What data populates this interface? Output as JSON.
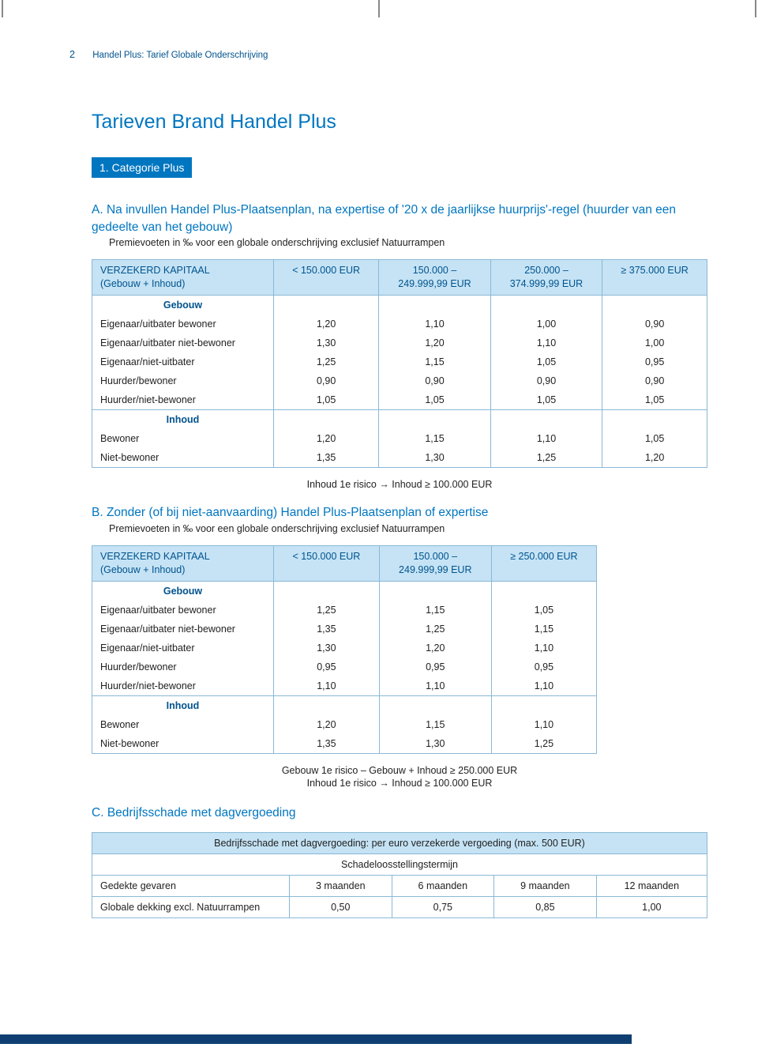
{
  "colors": {
    "accent": "#0076c0",
    "accent_dark": "#00538e",
    "header_bg": "#c5e3f5",
    "border": "#8ab8d6",
    "footer_bar": "#0f3f72",
    "text": "#222222"
  },
  "header": {
    "page_number": "2",
    "running_title": "Handel Plus: Tarief Globale Onderschrijving"
  },
  "title": "Tarieven Brand Handel Plus",
  "category_badge": "1. Categorie Plus",
  "sectionA": {
    "heading_prefix": "A. ",
    "heading": "Na invullen Handel Plus-Plaatsenplan, na expertise of '20 x de jaarlijkse huurprijs'-regel (huurder van een gedeelte van het gebouw)",
    "subtext": "Premievoeten in ‰ voor een globale onderschrijving exclusief Natuurrampen",
    "table": {
      "header_label_line1": "VERZEKERD KAPITAAL",
      "header_label_line2": "(Gebouw + Inhoud)",
      "columns": [
        "< 150.000 EUR",
        "150.000 –\n249.999,99 EUR",
        "250.000 –\n374.999,99 EUR",
        "≥ 375.000 EUR"
      ],
      "group1_label": "Gebouw",
      "group1_rows": [
        {
          "label": "Eigenaar/uitbater bewoner",
          "v": [
            "1,20",
            "1,10",
            "1,00",
            "0,90"
          ]
        },
        {
          "label": "Eigenaar/uitbater niet-bewoner",
          "v": [
            "1,30",
            "1,20",
            "1,10",
            "1,00"
          ]
        },
        {
          "label": "Eigenaar/niet-uitbater",
          "v": [
            "1,25",
            "1,15",
            "1,05",
            "0,95"
          ]
        },
        {
          "label": "Huurder/bewoner",
          "v": [
            "0,90",
            "0,90",
            "0,90",
            "0,90"
          ]
        },
        {
          "label": "Huurder/niet-bewoner",
          "v": [
            "1,05",
            "1,05",
            "1,05",
            "1,05"
          ]
        }
      ],
      "group2_label": "Inhoud",
      "group2_rows": [
        {
          "label": "Bewoner",
          "v": [
            "1,20",
            "1,15",
            "1,10",
            "1,05"
          ]
        },
        {
          "label": "Niet-bewoner",
          "v": [
            "1,35",
            "1,30",
            "1,25",
            "1,20"
          ]
        }
      ]
    },
    "footnote": "Inhoud 1e risico  →  Inhoud ≥ 100.000 EUR"
  },
  "sectionB": {
    "heading_prefix": "B. ",
    "heading": "Zonder (of bij niet-aanvaarding) Handel Plus-Plaatsenplan of expertise",
    "subtext": "Premievoeten in ‰ voor een globale onderschrijving exclusief Natuurrampen",
    "table": {
      "header_label_line1": "VERZEKERD KAPITAAL",
      "header_label_line2": "(Gebouw + Inhoud)",
      "columns": [
        "< 150.000 EUR",
        "150.000 –\n249.999,99 EUR",
        "≥ 250.000 EUR"
      ],
      "group1_label": "Gebouw",
      "group1_rows": [
        {
          "label": "Eigenaar/uitbater bewoner",
          "v": [
            "1,25",
            "1,15",
            "1,05"
          ]
        },
        {
          "label": "Eigenaar/uitbater niet-bewoner",
          "v": [
            "1,35",
            "1,25",
            "1,15"
          ]
        },
        {
          "label": "Eigenaar/niet-uitbater",
          "v": [
            "1,30",
            "1,20",
            "1,10"
          ]
        },
        {
          "label": "Huurder/bewoner",
          "v": [
            "0,95",
            "0,95",
            "0,95"
          ]
        },
        {
          "label": "Huurder/niet-bewoner",
          "v": [
            "1,10",
            "1,10",
            "1,10"
          ]
        }
      ],
      "group2_label": "Inhoud",
      "group2_rows": [
        {
          "label": "Bewoner",
          "v": [
            "1,20",
            "1,15",
            "1,10"
          ]
        },
        {
          "label": "Niet-bewoner",
          "v": [
            "1,35",
            "1,30",
            "1,25"
          ]
        }
      ]
    },
    "footnote1": "Gebouw 1e risico – Gebouw + Inhoud ≥ 250.000 EUR",
    "footnote2": "Inhoud 1e risico  →  Inhoud ≥ 100.000 EUR"
  },
  "sectionC": {
    "heading_prefix": "C. ",
    "heading": "Bedrijfsschade met dagvergoeding",
    "table": {
      "title": "Bedrijfsschade met dagvergoeding: per euro verzekerde vergoeding (max. 500 EUR)",
      "subtitle": "Schadeloosstellingstermijn",
      "row_label": "Gedekte gevaren",
      "columns": [
        "3 maanden",
        "6 maanden",
        "9 maanden",
        "12 maanden"
      ],
      "data_row_label": "Globale dekking excl. Natuurrampen",
      "data_values": [
        "0,50",
        "0,75",
        "0,85",
        "1,00"
      ]
    }
  }
}
